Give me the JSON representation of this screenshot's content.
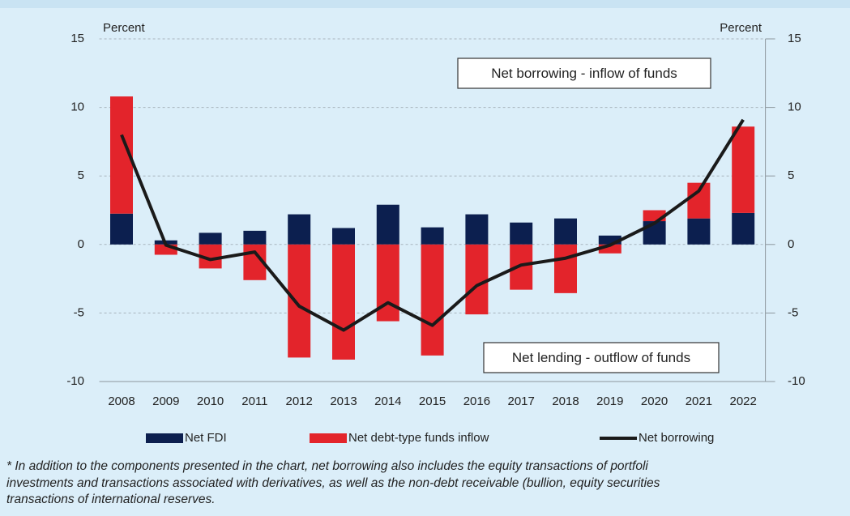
{
  "chart_data": {
    "type": "bar",
    "stacked": true,
    "ylabel": "Percent",
    "y2label": "Percent",
    "categories": [
      "2008",
      "2009",
      "2010",
      "2011",
      "2012",
      "2013",
      "2014",
      "2015",
      "2016",
      "2017",
      "2018",
      "2019",
      "2020",
      "2021",
      "2022"
    ],
    "series": [
      {
        "name": "Net FDI",
        "type": "bar",
        "color": "#0c1f4f",
        "values": [
          2.25,
          0.3,
          0.85,
          1.0,
          2.2,
          1.2,
          2.9,
          1.25,
          2.2,
          1.6,
          1.9,
          0.65,
          1.7,
          1.9,
          2.3
        ]
      },
      {
        "name": "Net debt-type funds inflow",
        "type": "bar",
        "color": "#e3242b",
        "values": [
          8.55,
          -0.75,
          -1.75,
          -2.6,
          -8.25,
          -8.4,
          -5.6,
          -8.1,
          -5.1,
          -3.3,
          -3.55,
          -0.65,
          0.8,
          2.6,
          6.3
        ]
      },
      {
        "name": "Net borrowing",
        "type": "line",
        "color": "#1a1a1a",
        "values": [
          8.0,
          -0.05,
          -1.1,
          -0.55,
          -4.5,
          -6.25,
          -4.25,
          -5.9,
          -3.0,
          -1.5,
          -1.0,
          -0.05,
          1.55,
          3.9,
          9.1
        ]
      }
    ],
    "ylim": [
      -10,
      15
    ],
    "yticks": [
      -10,
      -5,
      0,
      5,
      10,
      15
    ],
    "y2lim": [
      -10,
      15
    ],
    "y2ticks": [
      -10,
      -5,
      0,
      5,
      10,
      15
    ],
    "grid": true,
    "legend": "bottom",
    "annotations": [
      "Net borrowing - inflow of funds",
      "Net lending - outflow of funds"
    ]
  },
  "footnote": [
    "* In addition to the components presented in the chart, net borrowing also includes the equity transactions of portfoli",
    "investments and transactions associated with derivatives, as well as the non-debt receivable (bullion, equity securities",
    "transactions of international reserves."
  ]
}
